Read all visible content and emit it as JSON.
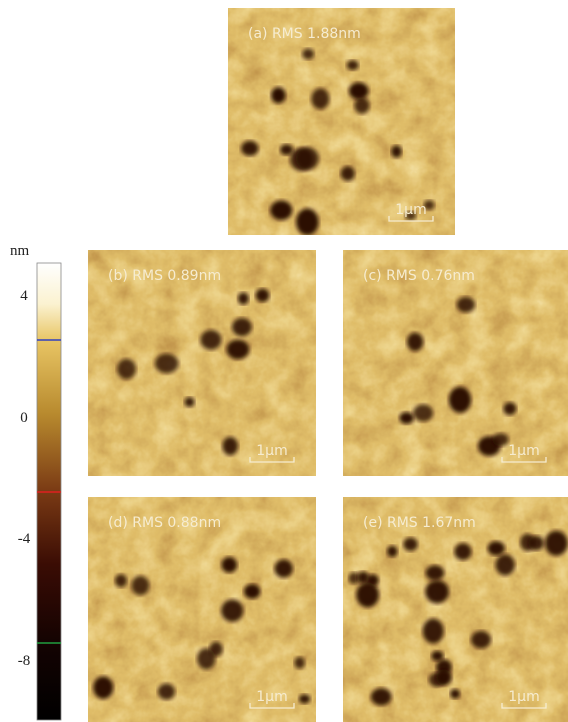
{
  "colorbar": {
    "unit": "nm",
    "ticks": [
      "4",
      "0",
      "-4",
      "-8"
    ]
  },
  "panels": [
    {
      "label": "(a) RMS 1.88nm",
      "scale_bar": "1μm"
    },
    {
      "label": "(b) RMS 0.89nm",
      "scale_bar": "1μm"
    },
    {
      "label": "(c) RMS 0.76nm",
      "scale_bar": "1μm"
    },
    {
      "label": "(d) RMS 0.88nm",
      "scale_bar": "1μm"
    },
    {
      "label": "(e) RMS 1.67nm",
      "scale_bar": "1μm"
    }
  ]
}
